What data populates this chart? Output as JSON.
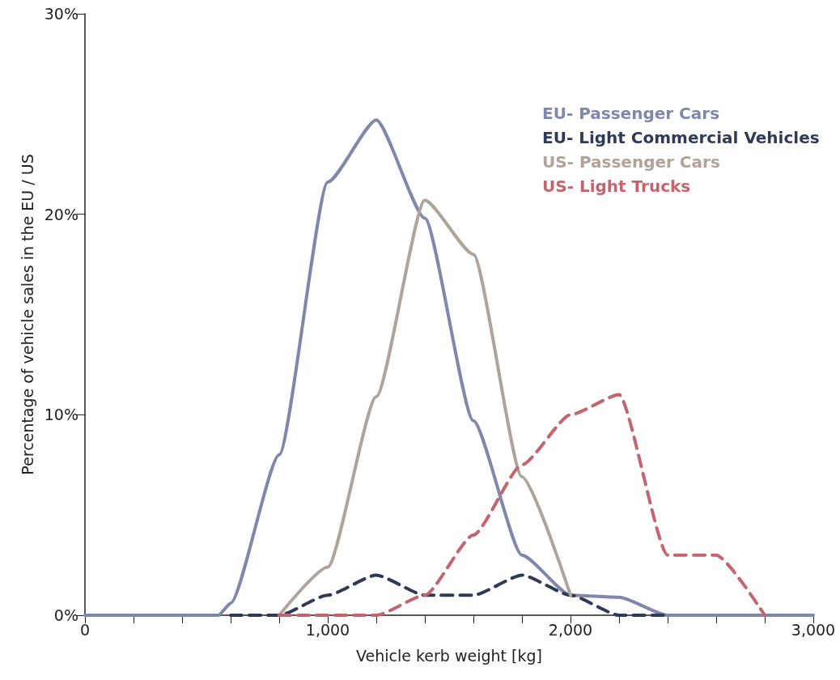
{
  "chart_data": {
    "type": "line",
    "xlabel": "Vehicle kerb weight [kg]",
    "ylabel": "Percentage of vehicle sales in the EU / US",
    "xlim": [
      0,
      3000
    ],
    "xticks": [
      0,
      {
        "value": 200,
        "label": null
      },
      {
        "value": 400,
        "label": null
      },
      {
        "value": 600,
        "label": null
      },
      {
        "value": 800,
        "label": null
      },
      {
        "value": 1000,
        "label": "1,000"
      },
      {
        "value": 1200,
        "label": null
      },
      {
        "value": 1400,
        "label": null
      },
      {
        "value": 1600,
        "label": null
      },
      {
        "value": 1800,
        "label": null
      },
      {
        "value": 2000,
        "label": "2,000"
      },
      {
        "value": 2200,
        "label": null
      },
      {
        "value": 2400,
        "label": null
      },
      {
        "value": 2600,
        "label": null
      },
      {
        "value": 2800,
        "label": null
      },
      {
        "value": 3000,
        "label": "3,000"
      }
    ],
    "ylim": [
      0,
      30
    ],
    "yticks": [
      {
        "value": 0,
        "label": "0%"
      },
      {
        "value": 10,
        "label": "10%"
      },
      {
        "value": 20,
        "label": "20%"
      },
      {
        "value": 30,
        "label": "30%"
      }
    ],
    "grid": false,
    "legend": "top right",
    "marker": "none",
    "series": [
      {
        "name": "EU- Passenger Cars",
        "color": "#7f88aa",
        "line_style": "solid",
        "x": [
          0,
          550,
          600,
          800,
          1000,
          1200,
          1400,
          1600,
          1800,
          2000,
          2200,
          2400,
          3000
        ],
        "values": [
          0,
          0,
          0.6,
          8,
          21.6,
          24.7,
          19.8,
          9.7,
          3,
          1,
          0.9,
          0,
          0
        ]
      },
      {
        "name": "EU- Light Commercial Vehicles",
        "color": "#2e3a57",
        "line_style": "dashed",
        "x": [
          600,
          800,
          1000,
          1200,
          1400,
          1600,
          1800,
          2000,
          2200,
          2400
        ],
        "values": [
          0,
          0,
          1,
          2,
          1,
          1,
          2,
          1,
          0,
          0
        ]
      },
      {
        "name": "US- Passenger Cars",
        "color": "#b0a49a",
        "line_style": "solid",
        "x": [
          800,
          1000,
          1200,
          1400,
          1600,
          1800,
          2000
        ],
        "values": [
          0,
          2.4,
          10.9,
          20.7,
          18,
          6.9,
          1
        ]
      },
      {
        "name": "US- Light Trucks",
        "color": "#c4646f",
        "line_style": "dashed",
        "x": [
          800,
          1200,
          1400,
          1600,
          1800,
          2000,
          2200,
          2400,
          2600,
          2800
        ],
        "values": [
          0,
          0,
          1,
          4,
          7.5,
          10,
          11,
          3,
          3,
          0
        ]
      }
    ]
  }
}
